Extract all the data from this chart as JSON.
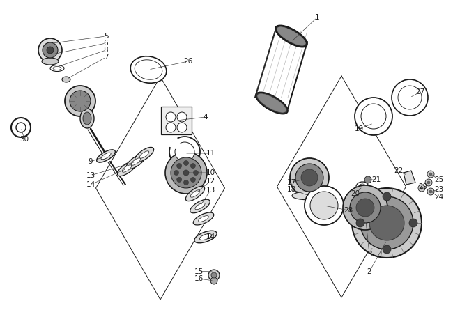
{
  "background_color": "#ffffff",
  "lc": "#1a1a1a",
  "label_fontsize": 7.5,
  "fig_width": 6.5,
  "fig_height": 4.45,
  "dpi": 100
}
